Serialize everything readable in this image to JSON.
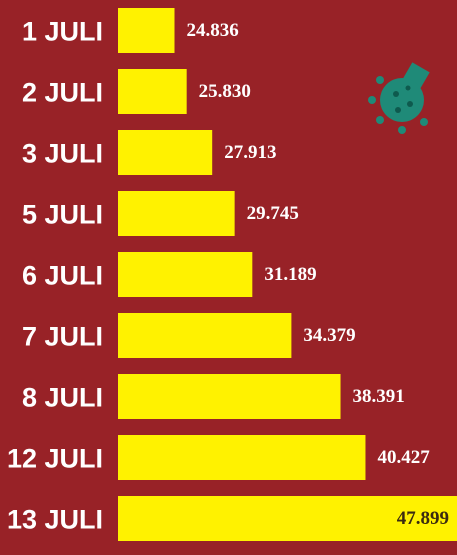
{
  "chart_data": {
    "type": "bar",
    "categories": [
      "1 JULI",
      "2 JULI",
      "3 JULI",
      "5 JULI",
      "6 JULI",
      "7 JULI",
      "8 JULI",
      "12 JULI",
      "13 JULI"
    ],
    "values": [
      24836,
      25830,
      27913,
      29745,
      31189,
      34379,
      38391,
      40427,
      47899
    ],
    "value_labels": [
      "24.836",
      "25.830",
      "27.913",
      "29.745",
      "31.189",
      "34.379",
      "38.391",
      "40.427",
      "47.899"
    ],
    "color": "#fff200"
  }
}
